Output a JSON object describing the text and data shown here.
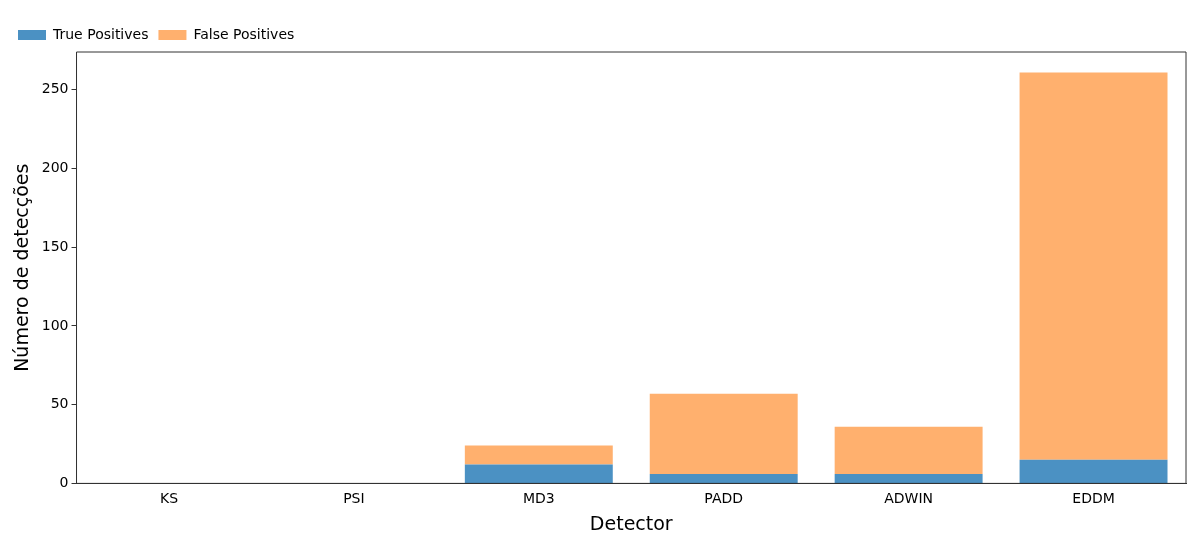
{
  "chart_data": {
    "type": "bar",
    "stacked": true,
    "xlabel": "Detector",
    "ylabel": "Número de detecções",
    "categories": [
      "KS",
      "PSI",
      "MD3",
      "PADD",
      "ADWIN",
      "EDDM"
    ],
    "series": [
      {
        "name": "True Positives",
        "color": "#4b91c3",
        "values": [
          0,
          0,
          12,
          6,
          6,
          15
        ]
      },
      {
        "name": "False Positives",
        "color": "#ffb06e",
        "values": [
          0,
          0,
          12,
          51,
          30,
          246
        ]
      }
    ],
    "ylim": [
      0,
      274
    ],
    "yticks": [
      0,
      50,
      100,
      150,
      200,
      250
    ],
    "grid": false,
    "legend": "top left"
  }
}
